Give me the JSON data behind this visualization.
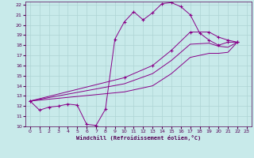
{
  "xlabel": "Windchill (Refroidissement éolien,°C)",
  "xlim": [
    -0.5,
    23.5
  ],
  "ylim": [
    10,
    22.3
  ],
  "xticks": [
    0,
    1,
    2,
    3,
    4,
    5,
    6,
    7,
    8,
    9,
    10,
    11,
    12,
    13,
    14,
    15,
    16,
    17,
    18,
    19,
    20,
    21,
    22,
    23
  ],
  "yticks": [
    10,
    11,
    12,
    13,
    14,
    15,
    16,
    17,
    18,
    19,
    20,
    21,
    22
  ],
  "bg_color": "#c8eaea",
  "grid_color": "#aed4d4",
  "line_color": "#880088",
  "lines": [
    {
      "x": [
        0,
        1,
        2,
        3,
        4,
        5,
        6,
        7,
        8,
        9,
        10,
        11,
        12,
        13,
        14,
        15,
        16,
        17,
        18,
        19,
        20,
        21,
        22
      ],
      "y": [
        12.5,
        11.6,
        11.9,
        12.0,
        12.2,
        12.1,
        10.2,
        10.1,
        11.7,
        18.6,
        20.3,
        21.3,
        20.5,
        21.2,
        22.1,
        22.2,
        21.8,
        21.0,
        19.2,
        18.5,
        18.0,
        18.3,
        18.3
      ],
      "has_markers": true
    },
    {
      "x": [
        0,
        10,
        13,
        15,
        17,
        19,
        20,
        21,
        22
      ],
      "y": [
        12.5,
        14.8,
        16.0,
        17.5,
        19.3,
        19.3,
        18.8,
        18.5,
        18.3
      ],
      "has_markers": true
    },
    {
      "x": [
        0,
        10,
        13,
        15,
        17,
        19,
        20,
        21,
        22
      ],
      "y": [
        12.5,
        14.2,
        15.2,
        16.5,
        18.1,
        18.2,
        17.9,
        17.8,
        18.3
      ],
      "has_markers": false
    },
    {
      "x": [
        0,
        10,
        13,
        15,
        17,
        19,
        20,
        21,
        22
      ],
      "y": [
        12.5,
        13.4,
        14.0,
        15.2,
        16.8,
        17.2,
        17.2,
        17.3,
        18.3
      ],
      "has_markers": false
    }
  ]
}
